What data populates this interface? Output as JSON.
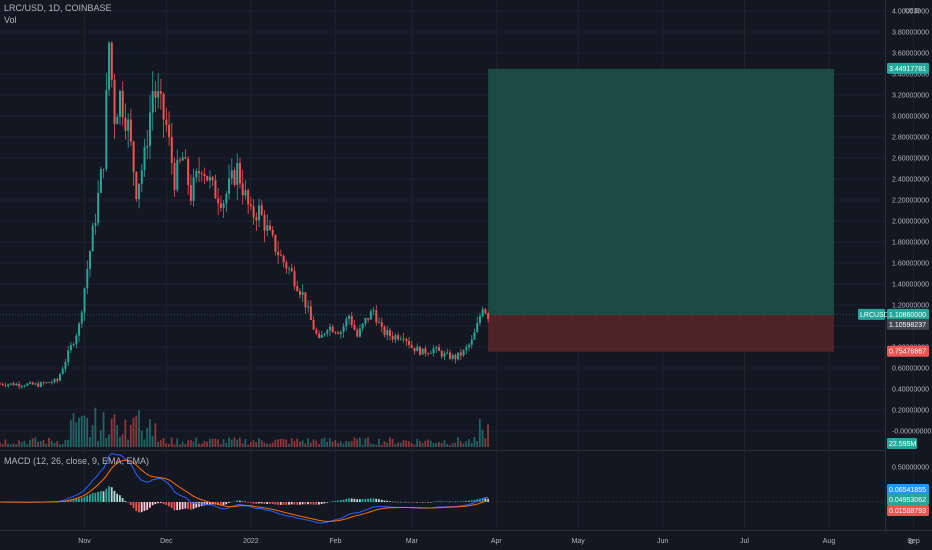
{
  "header": {
    "symbol_line": "LRC/USD, 1D, COINBASE",
    "vol_label": "Vol",
    "macd_label": "MACD (12, 26, close, 9, EMA, EMA)"
  },
  "colors": {
    "background": "#131722",
    "up": "#26a69a",
    "down": "#ef5350",
    "macd_line": "#2962ff",
    "signal_line": "#ff6d00",
    "profit_zone": "#1b4a45",
    "loss_zone": "#4f2428",
    "grid": "#1e222d"
  },
  "chart_data": [
    {
      "type": "candlestick",
      "title": "LRC/USD, 1D, COINBASE",
      "currency": "USD",
      "y_ticks": [
        "4.00000000",
        "3.80000000",
        "3.60000000",
        "3.40000000",
        "3.20000000",
        "3.00000000",
        "2.80000000",
        "2.60000000",
        "2.40000000",
        "2.20000000",
        "2.00000000",
        "1.80000000",
        "1.60000000",
        "1.40000000",
        "1.20000000",
        "1.00000000",
        "0.80000000",
        "0.60000000",
        "0.40000000",
        "0.20000000",
        "-0.00000000"
      ],
      "ylim": [
        -0.06,
        4.05
      ],
      "x_labels": [
        "Nov",
        "Dec",
        "2022",
        "Feb",
        "Mar",
        "Apr",
        "May",
        "Jun",
        "Jul",
        "Aug",
        "Sep"
      ],
      "anchors": [
        {
          "date": "2021-10-01",
          "close": 0.45
        },
        {
          "date": "2021-10-15",
          "close": 0.44
        },
        {
          "date": "2021-10-22",
          "close": 0.48
        },
        {
          "date": "2021-10-27",
          "close": 0.8
        },
        {
          "date": "2021-10-30",
          "close": 1.0
        },
        {
          "date": "2021-11-02",
          "close": 1.55
        },
        {
          "date": "2021-11-05",
          "close": 2.05
        },
        {
          "date": "2021-11-08",
          "close": 2.6
        },
        {
          "date": "2021-11-10",
          "close": 3.7
        },
        {
          "date": "2021-11-12",
          "close": 3.0
        },
        {
          "date": "2021-11-14",
          "close": 3.2
        },
        {
          "date": "2021-11-17",
          "close": 2.9
        },
        {
          "date": "2021-11-20",
          "close": 2.3
        },
        {
          "date": "2021-11-23",
          "close": 2.6
        },
        {
          "date": "2021-11-26",
          "close": 3.25
        },
        {
          "date": "2021-11-28",
          "close": 3.15
        },
        {
          "date": "2021-12-01",
          "close": 2.9
        },
        {
          "date": "2021-12-04",
          "close": 2.4
        },
        {
          "date": "2021-12-07",
          "close": 2.6
        },
        {
          "date": "2021-12-10",
          "close": 2.25
        },
        {
          "date": "2021-12-14",
          "close": 2.55
        },
        {
          "date": "2021-12-18",
          "close": 2.3
        },
        {
          "date": "2021-12-22",
          "close": 2.2
        },
        {
          "date": "2021-12-27",
          "close": 2.5
        },
        {
          "date": "2022-01-01",
          "close": 2.05
        },
        {
          "date": "2022-01-04",
          "close": 2.1
        },
        {
          "date": "2022-01-08",
          "close": 1.85
        },
        {
          "date": "2022-01-12",
          "close": 1.65
        },
        {
          "date": "2022-01-16",
          "close": 1.5
        },
        {
          "date": "2022-01-20",
          "close": 1.3
        },
        {
          "date": "2022-01-23",
          "close": 1.05
        },
        {
          "date": "2022-01-26",
          "close": 0.85
        },
        {
          "date": "2022-01-29",
          "close": 1.0
        },
        {
          "date": "2022-02-03",
          "close": 0.95
        },
        {
          "date": "2022-02-06",
          "close": 1.1
        },
        {
          "date": "2022-02-09",
          "close": 0.9
        },
        {
          "date": "2022-02-12",
          "close": 1.05
        },
        {
          "date": "2022-02-15",
          "close": 1.15
        },
        {
          "date": "2022-02-18",
          "close": 0.95
        },
        {
          "date": "2022-02-22",
          "close": 0.9
        },
        {
          "date": "2022-02-26",
          "close": 0.92
        },
        {
          "date": "2022-03-01",
          "close": 0.8
        },
        {
          "date": "2022-03-05",
          "close": 0.75
        },
        {
          "date": "2022-03-09",
          "close": 0.78
        },
        {
          "date": "2022-03-13",
          "close": 0.72
        },
        {
          "date": "2022-03-17",
          "close": 0.7
        },
        {
          "date": "2022-03-20",
          "close": 0.75
        },
        {
          "date": "2022-03-23",
          "close": 0.85
        },
        {
          "date": "2022-03-25",
          "close": 1.0
        },
        {
          "date": "2022-03-27",
          "close": 1.2
        },
        {
          "date": "2022-03-29",
          "close": 1.1
        }
      ],
      "position": {
        "target": 3.44917781,
        "entry": 1.10598237,
        "stop": 0.75476867
      },
      "last_price": {
        "symbol": "LRCUSD",
        "value": "1.10860000"
      },
      "price_tags": [
        {
          "label": "3.44917781",
          "value": 3.44917781,
          "color": "#26a69a"
        },
        {
          "label": "1.10598237",
          "value": 1.10598237,
          "color": "#434651"
        },
        {
          "label": "0.75476867",
          "value": 0.75476867,
          "color": "#ef5350"
        }
      ],
      "volume": {
        "last_value": "22.595M"
      }
    },
    {
      "type": "macd",
      "title": "MACD (12, 26, close, 9, EMA, EMA)",
      "y_ticks": [
        "0.50000000"
      ],
      "values": {
        "macd": "0.06541855",
        "signal": "0.04953062",
        "histogram": "0.01588793"
      }
    }
  ]
}
